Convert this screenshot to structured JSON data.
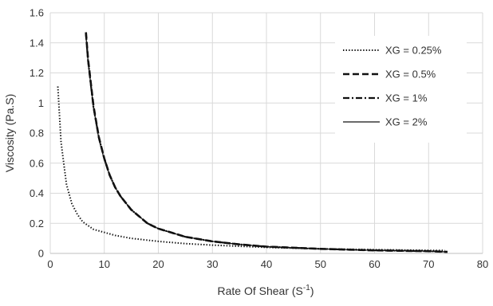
{
  "chart_data": {
    "type": "line",
    "xlabel_main": "Rate Of Shear (S",
    "xlabel_sup": "-1",
    "xlabel_close": ")",
    "ylabel": "Viscosity (Pa.S)",
    "xlim": [
      0,
      80
    ],
    "ylim": [
      0,
      1.6
    ],
    "x_ticks": [
      "0",
      "10",
      "20",
      "30",
      "40",
      "50",
      "60",
      "70",
      "80"
    ],
    "y_ticks": [
      "0",
      "0.2",
      "0.4",
      "0.6",
      "0.8",
      "1",
      "1.2",
      "1.4",
      "1.6"
    ],
    "grid": true,
    "legend_position": "top-right",
    "series": [
      {
        "name": "XG = 0.25%",
        "style": "dotted",
        "x": [
          1.4,
          2,
          3,
          4,
          5,
          6,
          8,
          10,
          12,
          15,
          20,
          25,
          30,
          40,
          50,
          60,
          70,
          73
        ],
        "y": [
          1.11,
          0.74,
          0.46,
          0.33,
          0.26,
          0.21,
          0.16,
          0.14,
          0.12,
          0.1,
          0.08,
          0.065,
          0.055,
          0.04,
          0.03,
          0.025,
          0.02,
          0.02
        ]
      },
      {
        "name": "XG = 0.5%",
        "style": "dashed",
        "x": [
          6.6,
          7,
          8,
          9,
          10,
          11,
          12,
          13,
          15,
          18,
          20,
          25,
          30,
          35,
          40,
          50,
          60,
          70,
          73.5
        ],
        "y": [
          1.47,
          1.29,
          0.98,
          0.77,
          0.63,
          0.52,
          0.44,
          0.38,
          0.29,
          0.2,
          0.165,
          0.11,
          0.08,
          0.06,
          0.045,
          0.03,
          0.02,
          0.015,
          0.01
        ]
      },
      {
        "name": "XG = 1%",
        "style": "dashdot",
        "x": [
          6.6,
          7,
          8,
          9,
          10,
          11,
          12,
          13,
          15,
          18,
          20,
          25,
          30,
          35,
          40,
          50,
          60,
          70,
          73.5
        ],
        "y": [
          1.46,
          1.28,
          0.97,
          0.77,
          0.63,
          0.52,
          0.44,
          0.38,
          0.29,
          0.2,
          0.165,
          0.11,
          0.08,
          0.06,
          0.045,
          0.03,
          0.02,
          0.015,
          0.01
        ]
      },
      {
        "name": "XG = 2%",
        "style": "solid",
        "x": [
          6.6,
          7,
          8,
          9,
          10,
          11,
          12,
          13,
          15,
          18,
          20,
          25,
          30,
          35,
          40,
          50,
          60,
          70,
          73.5
        ],
        "y": [
          1.45,
          1.28,
          0.97,
          0.76,
          0.62,
          0.52,
          0.44,
          0.38,
          0.29,
          0.2,
          0.165,
          0.11,
          0.08,
          0.06,
          0.045,
          0.03,
          0.02,
          0.015,
          0.01
        ]
      }
    ]
  }
}
